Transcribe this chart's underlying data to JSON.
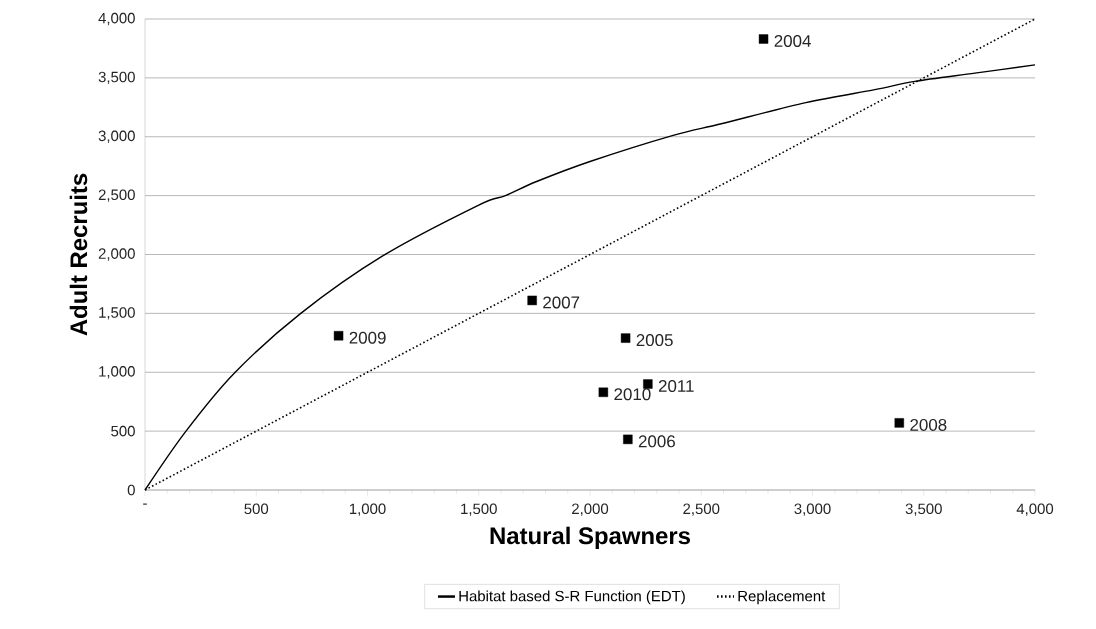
{
  "chart_data": {
    "type": "scatter",
    "xlabel": "Natural Spawners",
    "ylabel": "Adult Recruits",
    "xlim": [
      0,
      4000
    ],
    "ylim": [
      0,
      4000
    ],
    "xticks": [
      {
        "value": 0,
        "label": "-"
      },
      500,
      {
        "value": 1000,
        "label": "1,000"
      },
      {
        "value": 1500,
        "label": "1,500"
      },
      {
        "value": 2000,
        "label": "2,000"
      },
      {
        "value": 2500,
        "label": "2,500"
      },
      {
        "value": 3000,
        "label": "3,000"
      },
      {
        "value": 3500,
        "label": "3,500"
      },
      {
        "value": 4000,
        "label": "4,000"
      }
    ],
    "yticks": [
      0,
      500,
      {
        "value": 1000,
        "label": "1,000"
      },
      {
        "value": 1500,
        "label": "1,500"
      },
      {
        "value": 2000,
        "label": "2,000"
      },
      {
        "value": 2500,
        "label": "2,500"
      },
      {
        "value": 3000,
        "label": "3,000"
      },
      {
        "value": 3500,
        "label": "3,500"
      },
      {
        "value": 4000,
        "label": "4,000"
      }
    ],
    "grid": "y",
    "legend": "bottom",
    "series": [
      {
        "name": "Habitat based S-R Function (EDT)",
        "type": "line",
        "color": "#000000",
        "marker": "none",
        "line_style": "solid",
        "x": [
          0,
          180,
          400,
          700,
          1070,
          1500,
          1620,
          1760,
          2000,
          2370,
          2590,
          2970,
          3280,
          3460,
          3730,
          4000
        ],
        "values": [
          0,
          490,
          990,
          1500,
          1990,
          2420,
          2500,
          2620,
          2790,
          3010,
          3110,
          3290,
          3400,
          3470,
          3540,
          3610
        ]
      },
      {
        "name": "Replacement",
        "type": "line",
        "color": "#000000",
        "marker": "none",
        "line_style": "dotted",
        "x": [
          0,
          4000
        ],
        "values": [
          0,
          4000
        ]
      },
      {
        "color": "#000000",
        "marker": "square",
        "x": [
          2780,
          2160,
          2170,
          1740,
          3390,
          870,
          2060,
          2260
        ],
        "values": [
          3830,
          1290,
          430,
          1610,
          570,
          1310,
          830,
          900
        ]
      }
    ],
    "annotations": [
      {
        "text": "2004",
        "x": 2780,
        "y": 3830
      },
      {
        "text": "2005",
        "x": 2160,
        "y": 1290
      },
      {
        "text": "2006",
        "x": 2170,
        "y": 430
      },
      {
        "text": "2007",
        "x": 1740,
        "y": 1610
      },
      {
        "text": "2008",
        "x": 3390,
        "y": 570
      },
      {
        "text": "2009",
        "x": 870,
        "y": 1310
      },
      {
        "text": "2010",
        "x": 2060,
        "y": 830
      },
      {
        "text": "2011",
        "x": 2260,
        "y": 900
      }
    ]
  }
}
